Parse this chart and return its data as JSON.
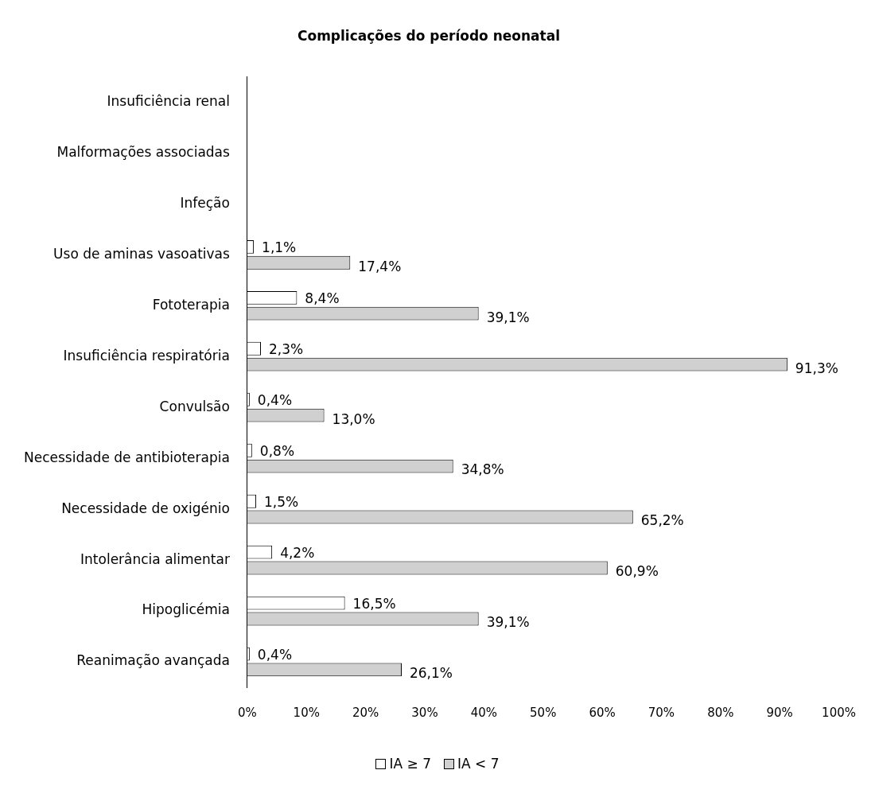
{
  "chart_data": {
    "type": "bar",
    "orientation": "horizontal",
    "title": "Complicações do período neonatal",
    "categories": [
      "Insuficiência renal",
      "Malformações associadas",
      "Infeção",
      "Uso de aminas vasoativas",
      "Fototerapia",
      "Insuficiência respiratória",
      "Convulsão",
      "Necessidade de antibioterapia",
      "Necessidade de oxigénio",
      "Intolerância alimentar",
      "Hipoglicémia",
      "Reanimação avançada"
    ],
    "series": [
      {
        "name": "IA ≥ 7",
        "color": "#ffffff",
        "values": [
          null,
          null,
          null,
          1.1,
          8.4,
          2.3,
          0.4,
          0.8,
          1.5,
          4.2,
          16.5,
          0.4
        ],
        "value_labels": [
          null,
          null,
          null,
          "1,1%",
          "8,4%",
          "2,3%",
          "0,4%",
          "0,8%",
          "1,5%",
          "4,2%",
          "16,5%",
          "0,4%"
        ]
      },
      {
        "name": "IA < 7",
        "color": "#d0d0d0",
        "values": [
          null,
          null,
          null,
          17.4,
          39.1,
          91.3,
          13.0,
          34.8,
          65.2,
          60.9,
          39.1,
          26.1
        ],
        "value_labels": [
          null,
          null,
          null,
          "17,4%",
          "39,1%",
          "91,3%",
          "13,0%",
          "34,8%",
          "65,2%",
          "60,9%",
          "39,1%",
          "26,1%"
        ]
      }
    ],
    "xlim": [
      0,
      100
    ],
    "xticks": [
      {
        "value": 0,
        "label": "0%"
      },
      {
        "value": 10,
        "label": "10%"
      },
      {
        "value": 20,
        "label": "20%"
      },
      {
        "value": 30,
        "label": "30%"
      },
      {
        "value": 40,
        "label": "40%"
      },
      {
        "value": 50,
        "label": "50%"
      },
      {
        "value": 60,
        "label": "60%"
      },
      {
        "value": 70,
        "label": "70%"
      },
      {
        "value": 80,
        "label": "80%"
      },
      {
        "value": 90,
        "label": "90%"
      },
      {
        "value": 100,
        "label": "100%"
      }
    ],
    "grid": false,
    "legend": "bottom"
  }
}
